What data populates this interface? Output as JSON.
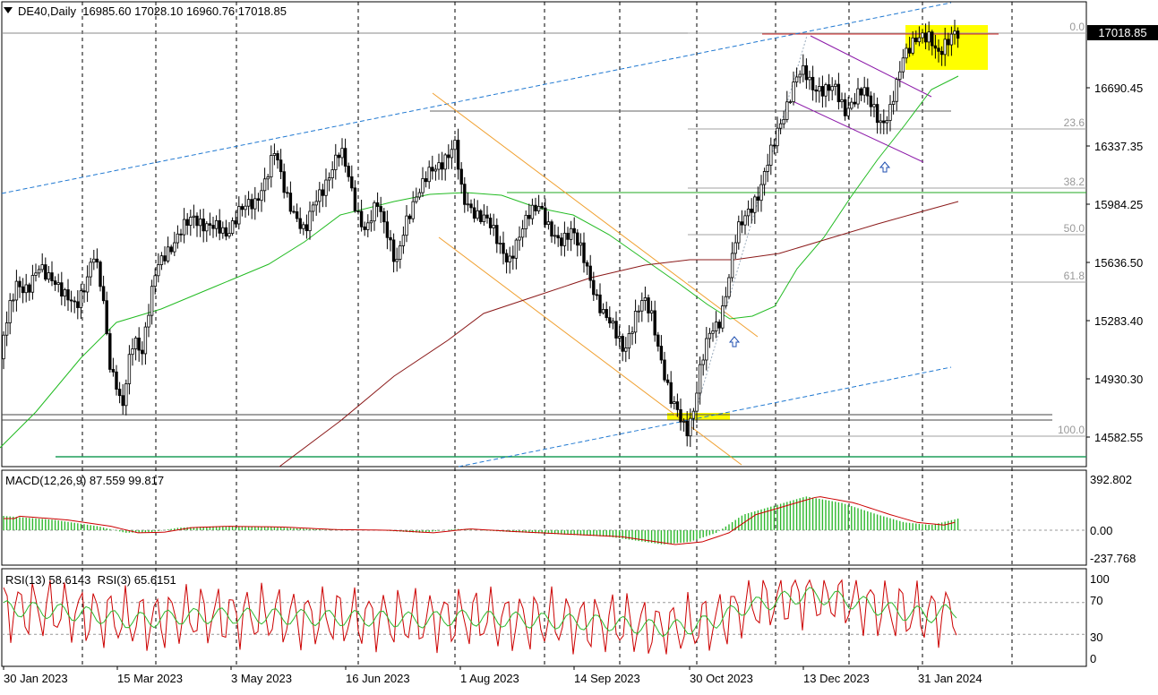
{
  "header": {
    "symbol_timeframe": "DE40,Daily",
    "ohlc": "16985.60 17028.10 16960.76 17018.85"
  },
  "price_axis": {
    "current_price": "17018.85",
    "labels": [
      "16690.45",
      "16337.35",
      "15984.25",
      "15636.50",
      "15283.40",
      "14930.30",
      "14582.55"
    ]
  },
  "fibonacci_levels": [
    "0.0",
    "23.6",
    "38.2",
    "50.0",
    "61.8",
    "100.0"
  ],
  "macd": {
    "label": "MACD(12,26,9) 87.559 99.817",
    "axis_labels": [
      "392.802",
      "0.00",
      "-237.768"
    ]
  },
  "rsi": {
    "label": "RSI(13) 58.6143  RSI(3) 65.6151",
    "axis_labels": [
      "100",
      "70",
      "30",
      "0"
    ]
  },
  "time_axis": [
    "30 Jan 2023",
    "15 Mar 2023",
    "3 May 2023",
    "16 Jun 2023",
    "1 Aug 2023",
    "14 Sep 2023",
    "30 Oct 2023",
    "13 Dec 2023",
    "31 Jan 2024"
  ],
  "colors": {
    "bull_candle": "#ffffff",
    "bear_candle": "#000000",
    "ma_fast": "#22bb22",
    "ma_slow": "#8b1a1a",
    "fib": "#a0a0a0",
    "channel_blue": "#1f78d1",
    "channel_orange": "#f0a030",
    "flag_purple": "#8b18a8",
    "highlight": "#ffff00",
    "macd_hist": "#2eb82e",
    "macd_signal": "#cc0000",
    "rsi13": "#2eb82e",
    "rsi3": "#cc0000"
  }
}
